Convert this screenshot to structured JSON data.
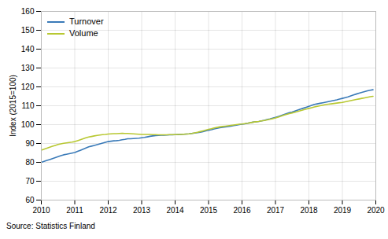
{
  "chart_data": {
    "type": "line",
    "ylabel": "Index (2015=100)",
    "annotations": [
      "Source: Statistics Finland"
    ],
    "x": [
      2010.0,
      2010.083,
      2010.167,
      2010.25,
      2010.333,
      2010.417,
      2010.5,
      2010.583,
      2010.667,
      2010.75,
      2010.833,
      2010.917,
      2011.0,
      2011.083,
      2011.167,
      2011.25,
      2011.333,
      2011.417,
      2011.5,
      2011.583,
      2011.667,
      2011.75,
      2011.833,
      2011.917,
      2012.0,
      2012.083,
      2012.167,
      2012.25,
      2012.333,
      2012.417,
      2012.5,
      2012.583,
      2012.667,
      2012.75,
      2012.833,
      2012.917,
      2013.0,
      2013.083,
      2013.167,
      2013.25,
      2013.333,
      2013.417,
      2013.5,
      2013.583,
      2013.667,
      2013.75,
      2013.833,
      2013.917,
      2014.0,
      2014.083,
      2014.167,
      2014.25,
      2014.333,
      2014.417,
      2014.5,
      2014.583,
      2014.667,
      2014.75,
      2014.833,
      2014.917,
      2015.0,
      2015.083,
      2015.167,
      2015.25,
      2015.333,
      2015.417,
      2015.5,
      2015.583,
      2015.667,
      2015.75,
      2015.833,
      2015.917,
      2016.0,
      2016.083,
      2016.167,
      2016.25,
      2016.333,
      2016.417,
      2016.5,
      2016.583,
      2016.667,
      2016.75,
      2016.833,
      2016.917,
      2017.0,
      2017.083,
      2017.167,
      2017.25,
      2017.333,
      2017.417,
      2017.5,
      2017.583,
      2017.667,
      2017.75,
      2017.833,
      2017.917,
      2018.0,
      2018.083,
      2018.167,
      2018.25,
      2018.333,
      2018.417,
      2018.5,
      2018.583,
      2018.667,
      2018.75,
      2018.833,
      2018.917,
      2019.0,
      2019.083,
      2019.167,
      2019.25,
      2019.333,
      2019.417,
      2019.5,
      2019.583,
      2019.667,
      2019.75,
      2019.833,
      2019.917
    ],
    "series": [
      {
        "name": "Turnover",
        "color": "#3a7ab8",
        "values": [
          80.0,
          80.5,
          81.0,
          81.5,
          82.0,
          82.5,
          83.0,
          83.5,
          84.0,
          84.3,
          84.6,
          84.9,
          85.2,
          85.8,
          86.4,
          87.0,
          87.6,
          88.2,
          88.6,
          89.0,
          89.4,
          89.8,
          90.2,
          90.6,
          91.0,
          91.2,
          91.4,
          91.5,
          91.7,
          92.0,
          92.2,
          92.5,
          92.5,
          92.6,
          92.7,
          92.8,
          93.0,
          93.2,
          93.5,
          93.8,
          94.0,
          94.2,
          94.3,
          94.4,
          94.4,
          94.5,
          94.6,
          94.6,
          94.7,
          94.7,
          94.8,
          94.9,
          95.0,
          95.1,
          95.3,
          95.5,
          95.7,
          96.0,
          96.3,
          96.7,
          97.0,
          97.3,
          97.7,
          98.0,
          98.3,
          98.6,
          98.8,
          99.0,
          99.2,
          99.5,
          99.7,
          100.0,
          100.2,
          100.4,
          100.7,
          101.0,
          101.3,
          101.5,
          101.7,
          102.0,
          102.3,
          102.7,
          103.0,
          103.4,
          103.8,
          104.3,
          104.8,
          105.3,
          105.8,
          106.3,
          106.7,
          107.2,
          107.7,
          108.2,
          108.7,
          109.2,
          109.7,
          110.2,
          110.7,
          111.0,
          111.3,
          111.6,
          111.9,
          112.2,
          112.5,
          112.8,
          113.1,
          113.5,
          113.9,
          114.3,
          114.7,
          115.2,
          115.7,
          116.2,
          116.7,
          117.1,
          117.5,
          117.9,
          118.2,
          118.5
        ]
      },
      {
        "name": "Volume",
        "color": "#b8c832",
        "values": [
          86.5,
          87.0,
          87.5,
          88.0,
          88.5,
          89.0,
          89.5,
          89.8,
          90.1,
          90.3,
          90.5,
          90.7,
          91.0,
          91.5,
          92.0,
          92.5,
          93.0,
          93.4,
          93.7,
          94.0,
          94.3,
          94.5,
          94.7,
          94.8,
          95.0,
          95.1,
          95.2,
          95.2,
          95.3,
          95.4,
          95.3,
          95.3,
          95.2,
          95.1,
          95.0,
          94.9,
          94.8,
          94.8,
          94.8,
          94.8,
          94.7,
          94.7,
          94.6,
          94.6,
          94.6,
          94.6,
          94.7,
          94.7,
          94.7,
          94.8,
          94.8,
          94.9,
          95.0,
          95.1,
          95.3,
          95.6,
          95.9,
          96.3,
          96.7,
          97.1,
          97.5,
          97.8,
          98.2,
          98.5,
          98.8,
          99.0,
          99.2,
          99.4,
          99.6,
          99.8,
          100.0,
          100.2,
          100.3,
          100.5,
          100.7,
          101.0,
          101.3,
          101.5,
          101.7,
          102.0,
          102.2,
          102.5,
          102.8,
          103.1,
          103.5,
          104.0,
          104.5,
          105.0,
          105.4,
          105.8,
          106.2,
          106.6,
          107.0,
          107.4,
          107.8,
          108.2,
          108.6,
          109.0,
          109.4,
          109.7,
          110.0,
          110.3,
          110.6,
          110.8,
          111.0,
          111.2,
          111.4,
          111.6,
          111.8,
          112.1,
          112.4,
          112.7,
          113.0,
          113.3,
          113.6,
          113.9,
          114.2,
          114.5,
          114.8,
          115.0
        ]
      }
    ],
    "xlim": [
      2010,
      2020
    ],
    "ylim": [
      60,
      160
    ],
    "xticks": [
      2010,
      2011,
      2012,
      2013,
      2014,
      2015,
      2016,
      2017,
      2018,
      2019,
      2020
    ],
    "yticks": [
      60,
      70,
      80,
      90,
      100,
      110,
      120,
      130,
      140,
      150,
      160
    ],
    "grid": true,
    "legend": "upper left"
  }
}
